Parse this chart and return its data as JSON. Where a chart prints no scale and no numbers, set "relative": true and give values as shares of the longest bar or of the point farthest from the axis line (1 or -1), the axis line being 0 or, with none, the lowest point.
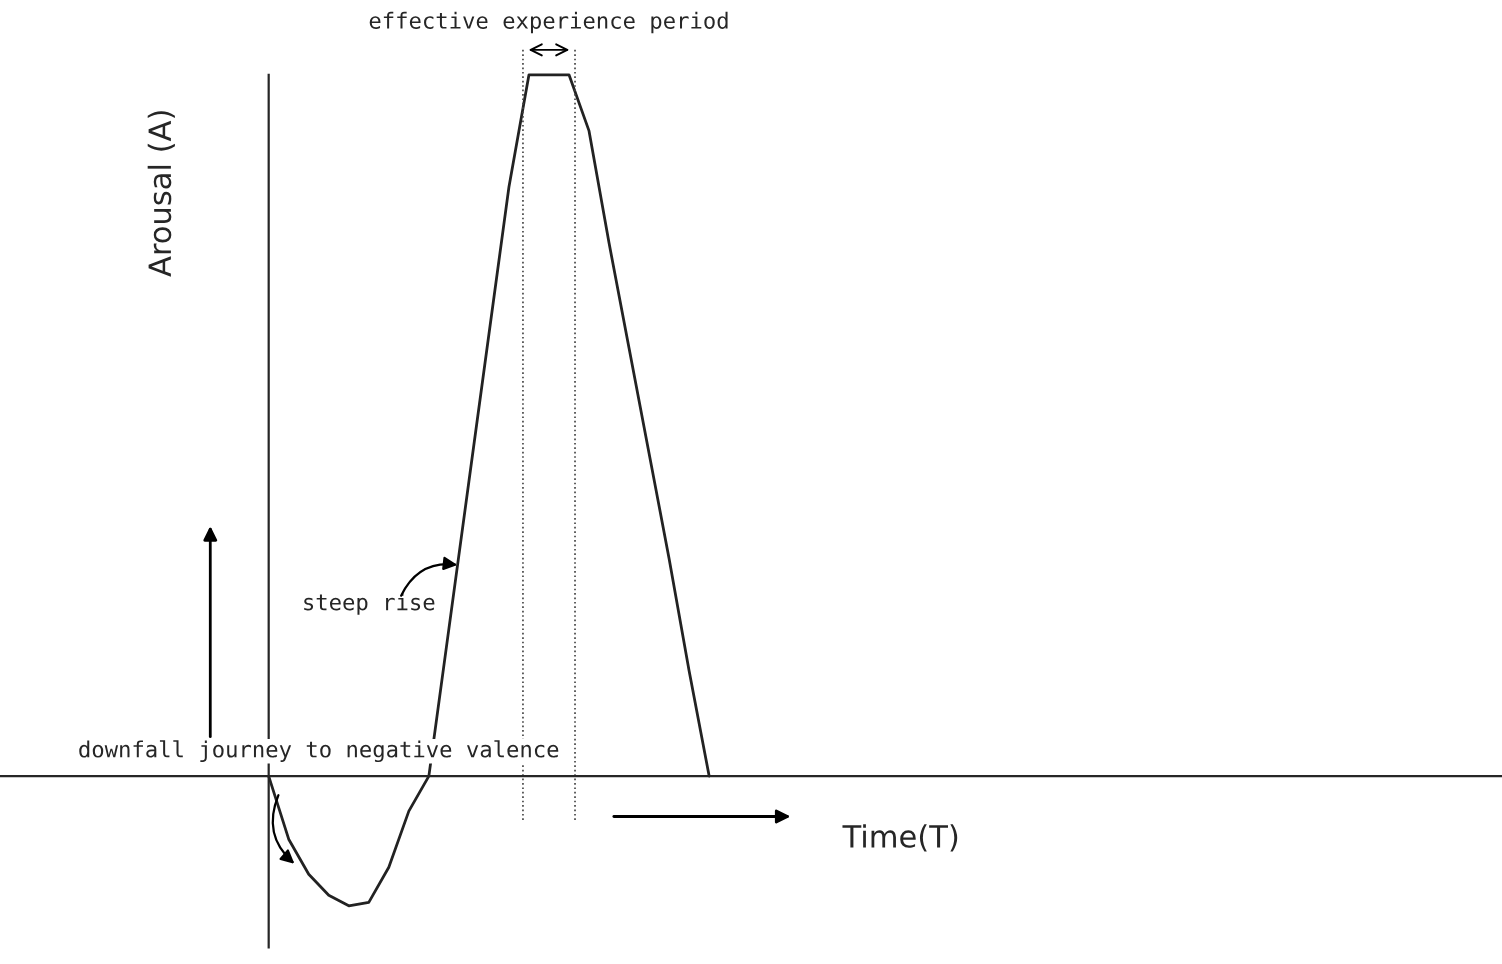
{
  "chart_data": {
    "type": "line",
    "relative": true,
    "xlabel": "Time(T)",
    "ylabel": "Arousal (A)",
    "categories": [
      null,
      null,
      null,
      null,
      null,
      null,
      null,
      null,
      null,
      null,
      null,
      null,
      null,
      null,
      null,
      null,
      null,
      null,
      null,
      null,
      null,
      null,
      null
    ],
    "series": [
      {
        "color": "#222222",
        "values": [
          0,
          -0.09,
          -0.14,
          -0.17,
          -0.185,
          -0.18,
          -0.13,
          -0.05,
          0,
          0.21,
          0.42,
          0.63,
          0.84,
          1,
          1,
          1,
          0.92,
          0.76,
          0.61,
          0.46,
          0.31,
          0.15,
          0
        ]
      }
    ],
    "annotations": [
      "effective experience period",
      "steep rise",
      "downfall journey to negative valence"
    ],
    "marker": "none",
    "line_style": "solid"
  }
}
